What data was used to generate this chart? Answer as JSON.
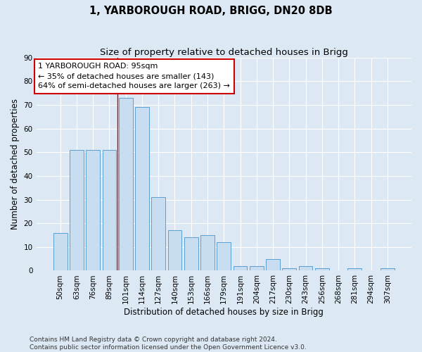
{
  "title": "1, YARBOROUGH ROAD, BRIGG, DN20 8DB",
  "subtitle": "Size of property relative to detached houses in Brigg",
  "xlabel": "Distribution of detached houses by size in Brigg",
  "ylabel": "Number of detached properties",
  "bar_labels": [
    "50sqm",
    "63sqm",
    "76sqm",
    "89sqm",
    "101sqm",
    "114sqm",
    "127sqm",
    "140sqm",
    "153sqm",
    "166sqm",
    "179sqm",
    "191sqm",
    "204sqm",
    "217sqm",
    "230sqm",
    "243sqm",
    "256sqm",
    "268sqm",
    "281sqm",
    "294sqm",
    "307sqm"
  ],
  "bar_values": [
    16,
    51,
    51,
    51,
    73,
    69,
    31,
    17,
    14,
    15,
    12,
    2,
    2,
    5,
    1,
    2,
    1,
    0,
    1,
    0,
    1
  ],
  "bar_color": "#c9ddf0",
  "bar_edge_color": "#5a9fd4",
  "vline_x_index": 3.5,
  "annotation_text": "1 YARBOROUGH ROAD: 95sqm\n← 35% of detached houses are smaller (143)\n64% of semi-detached houses are larger (263) →",
  "annotation_box_color": "#ffffff",
  "annotation_box_edge_color": "#cc0000",
  "ylim": [
    0,
    90
  ],
  "yticks": [
    0,
    10,
    20,
    30,
    40,
    50,
    60,
    70,
    80,
    90
  ],
  "footer_line1": "Contains HM Land Registry data © Crown copyright and database right 2024.",
  "footer_line2": "Contains public sector information licensed under the Open Government Licence v3.0.",
  "bg_color": "#dce9f5",
  "plot_bg_color": "#dce9f5",
  "grid_color": "#ffffff",
  "vline_color": "#cc0000",
  "title_fontsize": 10.5,
  "subtitle_fontsize": 9.5,
  "axis_label_fontsize": 8.5,
  "tick_fontsize": 7.5,
  "annotation_fontsize": 8,
  "footer_fontsize": 6.5
}
